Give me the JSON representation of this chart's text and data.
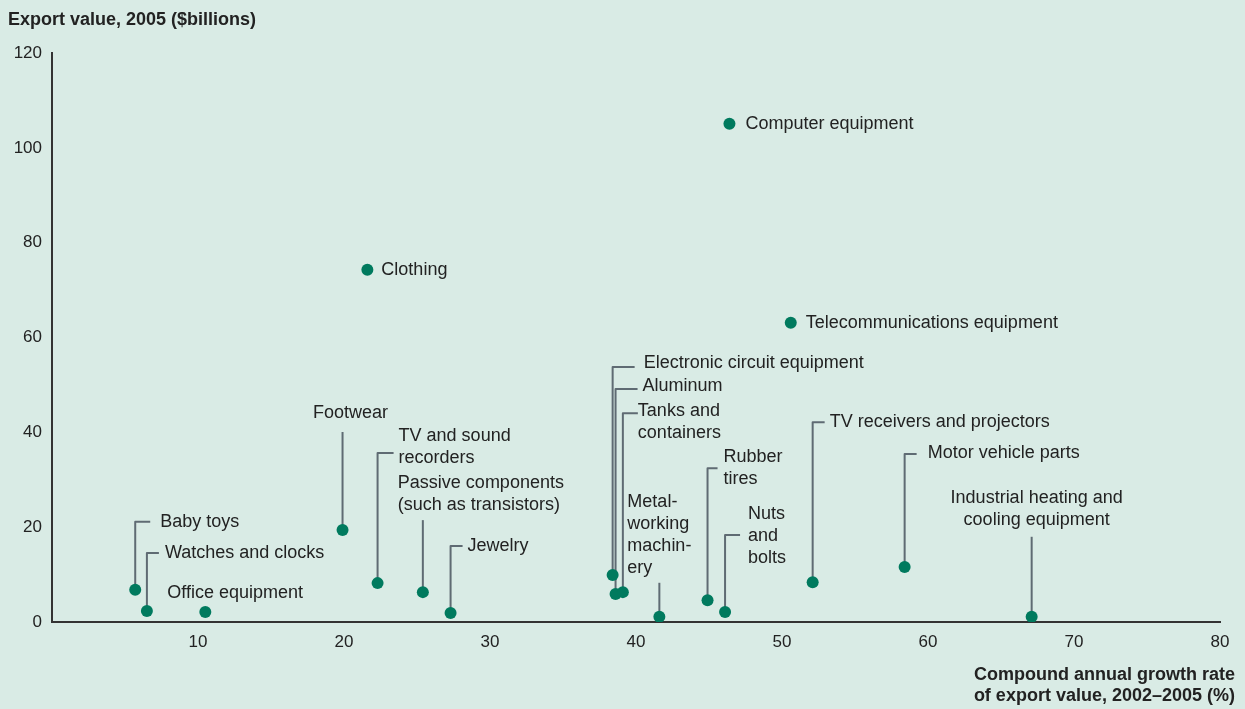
{
  "chart_data": {
    "type": "scatter",
    "ylabel": "Export value, 2005 ($billions)",
    "xlabel": "Compound annual growth rate\nof export value, 2002–2005 (%)",
    "xlim": [
      0,
      80
    ],
    "xticks": [
      10,
      20,
      30,
      40,
      50,
      60,
      70,
      80
    ],
    "ylim": [
      0,
      120
    ],
    "yticks": [
      0,
      20,
      40,
      60,
      80,
      100,
      120
    ],
    "grid": false,
    "legend": false,
    "marker": "circle",
    "series": [
      {
        "color": "#007a5e",
        "x": [
          5.7,
          6.5,
          10.5,
          19.9,
          21.6,
          22.3,
          25.4,
          27.3,
          38.4,
          38.6,
          39.1,
          41.6,
          44.9,
          46.1,
          46.4,
          50.6,
          52.1,
          58.4,
          67.1
        ],
        "values": [
          6.8,
          2.3,
          2.1,
          19.4,
          74.3,
          8.2,
          6.3,
          1.9,
          9.9,
          5.9,
          6.3,
          1.1,
          4.6,
          2.1,
          105.1,
          63.1,
          8.4,
          11.6,
          1.1
        ]
      }
    ],
    "annotations": [
      {
        "text": "Baby toys",
        "x": 5.7,
        "y": 6.8
      },
      {
        "text": "Watches and clocks",
        "x": 6.5,
        "y": 2.3
      },
      {
        "text": "Office equipment",
        "x": 10.5,
        "y": 2.1
      },
      {
        "text": "Footwear",
        "x": 19.9,
        "y": 19.4
      },
      {
        "text": "Clothing",
        "x": 21.6,
        "y": 74.3
      },
      {
        "text": "TV and sound\nrecorders",
        "x": 22.3,
        "y": 8.2
      },
      {
        "text": "Passive components\n(such as transistors)",
        "x": 25.4,
        "y": 6.3
      },
      {
        "text": "Jewelry",
        "x": 27.3,
        "y": 1.9
      },
      {
        "text": "Electronic circuit equipment",
        "x": 38.4,
        "y": 9.9
      },
      {
        "text": "Aluminum",
        "x": 38.6,
        "y": 5.9
      },
      {
        "text": "Tanks and\ncontainers",
        "x": 39.1,
        "y": 6.3
      },
      {
        "text": "Metal-\nworking\nmachin-\nery",
        "x": 41.6,
        "y": 1.1
      },
      {
        "text": "Rubber\ntires",
        "x": 44.9,
        "y": 4.6
      },
      {
        "text": "Nuts\nand\nbolts",
        "x": 46.1,
        "y": 2.1
      },
      {
        "text": "Computer equipment",
        "x": 46.4,
        "y": 105.1
      },
      {
        "text": "Telecommunications equipment",
        "x": 50.6,
        "y": 63.1
      },
      {
        "text": "TV receivers and projectors",
        "x": 52.1,
        "y": 8.4
      },
      {
        "text": "Motor vehicle parts",
        "x": 58.4,
        "y": 11.6
      },
      {
        "text": "Industrial heating and\ncooling equipment",
        "x": 67.1,
        "y": 1.1
      }
    ]
  }
}
